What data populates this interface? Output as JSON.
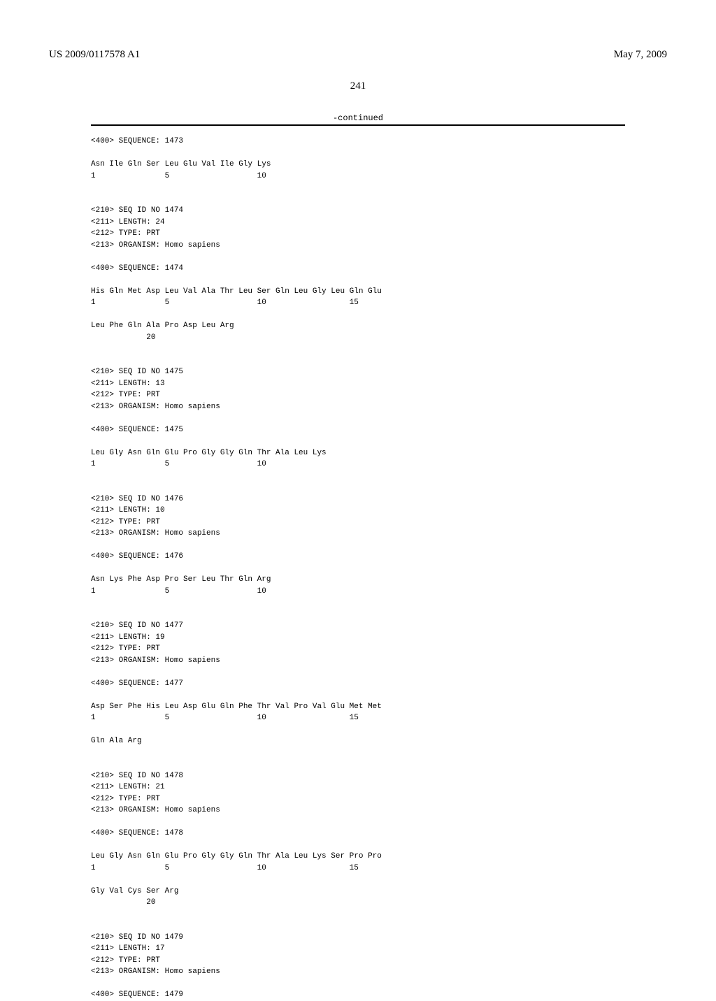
{
  "header": {
    "publication_number": "US 2009/0117578 A1",
    "date": "May 7, 2009",
    "page_number": "241",
    "continued_label": "-continued"
  },
  "sequences": [
    {
      "intro": "<400> SEQUENCE: 1473",
      "lines": [
        "Asn Ile Gln Ser Leu Glu Val Ile Gly Lys",
        "1               5                   10"
      ]
    },
    {
      "meta": [
        "<210> SEQ ID NO 1474",
        "<211> LENGTH: 24",
        "<212> TYPE: PRT",
        "<213> ORGANISM: Homo sapiens"
      ],
      "intro": "<400> SEQUENCE: 1474",
      "lines": [
        "His Gln Met Asp Leu Val Ala Thr Leu Ser Gln Leu Gly Leu Gln Glu",
        "1               5                   10                  15",
        "",
        "Leu Phe Gln Ala Pro Asp Leu Arg",
        "            20"
      ]
    },
    {
      "meta": [
        "<210> SEQ ID NO 1475",
        "<211> LENGTH: 13",
        "<212> TYPE: PRT",
        "<213> ORGANISM: Homo sapiens"
      ],
      "intro": "<400> SEQUENCE: 1475",
      "lines": [
        "Leu Gly Asn Gln Glu Pro Gly Gly Gln Thr Ala Leu Lys",
        "1               5                   10"
      ]
    },
    {
      "meta": [
        "<210> SEQ ID NO 1476",
        "<211> LENGTH: 10",
        "<212> TYPE: PRT",
        "<213> ORGANISM: Homo sapiens"
      ],
      "intro": "<400> SEQUENCE: 1476",
      "lines": [
        "Asn Lys Phe Asp Pro Ser Leu Thr Gln Arg",
        "1               5                   10"
      ]
    },
    {
      "meta": [
        "<210> SEQ ID NO 1477",
        "<211> LENGTH: 19",
        "<212> TYPE: PRT",
        "<213> ORGANISM: Homo sapiens"
      ],
      "intro": "<400> SEQUENCE: 1477",
      "lines": [
        "Asp Ser Phe His Leu Asp Glu Gln Phe Thr Val Pro Val Glu Met Met",
        "1               5                   10                  15",
        "",
        "Gln Ala Arg"
      ]
    },
    {
      "meta": [
        "<210> SEQ ID NO 1478",
        "<211> LENGTH: 21",
        "<212> TYPE: PRT",
        "<213> ORGANISM: Homo sapiens"
      ],
      "intro": "<400> SEQUENCE: 1478",
      "lines": [
        "Leu Gly Asn Gln Glu Pro Gly Gly Gln Thr Ala Leu Lys Ser Pro Pro",
        "1               5                   10                  15",
        "",
        "Gly Val Cys Ser Arg",
        "            20"
      ]
    },
    {
      "meta": [
        "<210> SEQ ID NO 1479",
        "<211> LENGTH: 17",
        "<212> TYPE: PRT",
        "<213> ORGANISM: Homo sapiens"
      ],
      "intro": "<400> SEQUENCE: 1479",
      "lines": []
    }
  ]
}
